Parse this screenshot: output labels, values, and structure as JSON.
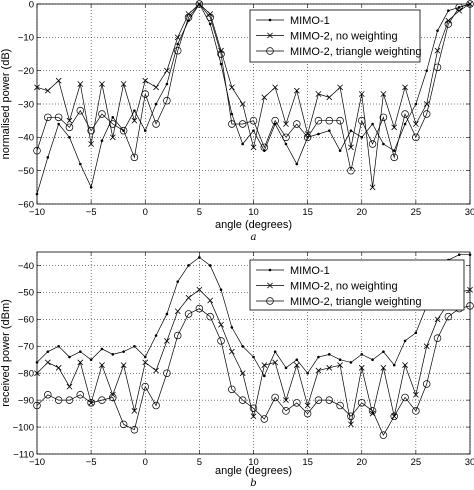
{
  "chart_data": [
    {
      "type": "line",
      "panel_label": "a",
      "xlabel": "angle (degrees)",
      "ylabel": "normalised power (dB)",
      "xlim": [
        -10,
        30
      ],
      "ylim": [
        -60,
        0
      ],
      "xticks": [
        -10,
        -5,
        0,
        5,
        10,
        15,
        20,
        25,
        30
      ],
      "yticks": [
        0,
        -10,
        -20,
        -30,
        -40,
        -50,
        -60
      ],
      "grid": true,
      "legend_position": "top-right",
      "series": [
        {
          "name": "MIMO-1",
          "marker": "dot",
          "x": [
            -10,
            -9,
            -8,
            -7,
            -6,
            -5,
            -4,
            -3,
            -2,
            -1,
            0,
            1,
            2,
            3,
            4,
            5,
            6,
            7,
            8,
            9,
            10,
            11,
            12,
            13,
            14,
            15,
            16,
            17,
            18,
            19,
            20,
            21,
            22,
            23,
            24,
            25,
            26,
            27,
            28,
            29,
            30
          ],
          "y": [
            -57,
            -46,
            -36,
            -40,
            -48,
            -55,
            -41,
            -34,
            -38,
            -32,
            -38,
            -30,
            -24,
            -12,
            -5,
            0,
            -6,
            -18,
            -33,
            -42,
            -38,
            -44,
            -36,
            -42,
            -48,
            -40,
            -39,
            -38,
            -44,
            -38,
            -40,
            -36,
            -42,
            -44,
            -36,
            -30,
            -20,
            -8,
            -2,
            -1,
            0
          ]
        },
        {
          "name": "MIMO-2, no weighting",
          "marker": "x",
          "x": [
            -10,
            -9,
            -8,
            -7,
            -6,
            -5,
            -4,
            -3,
            -2,
            -1,
            0,
            1,
            2,
            3,
            4,
            5,
            6,
            7,
            8,
            9,
            10,
            11,
            12,
            13,
            14,
            15,
            16,
            17,
            18,
            19,
            20,
            21,
            22,
            23,
            24,
            25,
            26,
            27,
            28,
            29,
            30
          ],
          "y": [
            -25,
            -26,
            -23,
            -35,
            -24,
            -42,
            -24,
            -40,
            -24,
            -35,
            -23,
            -25,
            -20,
            -10,
            -3,
            0,
            -3,
            -14,
            -25,
            -30,
            -43,
            -28,
            -25,
            -36,
            -26,
            -39,
            -27,
            -28,
            -25,
            -43,
            -27,
            -55,
            -27,
            -37,
            -25,
            -36,
            -30,
            -14,
            -5,
            -2,
            0
          ]
        },
        {
          "name": "MIMO-2, triangle weighting",
          "marker": "circle",
          "x": [
            -10,
            -9,
            -8,
            -7,
            -6,
            -5,
            -4,
            -3,
            -2,
            -1,
            0,
            1,
            2,
            3,
            4,
            5,
            6,
            7,
            8,
            9,
            10,
            11,
            12,
            13,
            14,
            15,
            16,
            17,
            18,
            19,
            20,
            21,
            22,
            23,
            24,
            25,
            26,
            27,
            28,
            29,
            30
          ],
          "y": [
            -44,
            -34,
            -34,
            -37,
            -32,
            -38,
            -33,
            -36,
            -38,
            -46,
            -27,
            -36,
            -29,
            -14,
            -4,
            0,
            -4,
            -15,
            -36,
            -36,
            -35,
            -43,
            -35,
            -40,
            -36,
            -40,
            -35,
            -35,
            -35,
            -50,
            -35,
            -42,
            -34,
            -46,
            -33,
            -40,
            -33,
            -19,
            -6,
            -1,
            0
          ]
        }
      ]
    },
    {
      "type": "line",
      "panel_label": "b",
      "xlabel": "angle (degrees)",
      "ylabel": "received power (dBm)",
      "xlim": [
        -10,
        30
      ],
      "ylim": [
        -110,
        -35
      ],
      "xticks": [
        -10,
        -5,
        0,
        5,
        10,
        15,
        20,
        25,
        30
      ],
      "yticks": [
        -40,
        -50,
        -60,
        -70,
        -80,
        -90,
        -100,
        -110
      ],
      "grid": true,
      "legend_position": "top-right",
      "series": [
        {
          "name": "MIMO-1",
          "marker": "dot",
          "x": [
            -10,
            -9,
            -8,
            -7,
            -6,
            -5,
            -4,
            -3,
            -2,
            -1,
            0,
            1,
            2,
            3,
            4,
            5,
            6,
            7,
            8,
            9,
            10,
            11,
            12,
            13,
            14,
            15,
            16,
            17,
            18,
            19,
            20,
            21,
            22,
            23,
            24,
            25,
            26,
            27,
            28,
            29,
            30
          ],
          "y": [
            -76,
            -72,
            -70,
            -74,
            -72,
            -75,
            -71,
            -73,
            -72,
            -70,
            -74,
            -66,
            -58,
            -46,
            -40,
            -37,
            -40,
            -49,
            -63,
            -70,
            -74,
            -81,
            -72,
            -78,
            -75,
            -80,
            -74,
            -73,
            -75,
            -76,
            -73,
            -75,
            -72,
            -77,
            -68,
            -65,
            -55,
            -44,
            -38,
            -36,
            -36
          ]
        },
        {
          "name": "MIMO-2, no weighting",
          "marker": "x",
          "x": [
            -10,
            -9,
            -8,
            -7,
            -6,
            -5,
            -4,
            -3,
            -2,
            -1,
            0,
            1,
            2,
            3,
            4,
            5,
            6,
            7,
            8,
            9,
            10,
            11,
            12,
            13,
            14,
            15,
            16,
            17,
            18,
            19,
            20,
            21,
            22,
            23,
            24,
            25,
            26,
            27,
            28,
            29,
            30
          ],
          "y": [
            -80,
            -76,
            -78,
            -85,
            -76,
            -91,
            -77,
            -88,
            -77,
            -94,
            -76,
            -79,
            -68,
            -57,
            -52,
            -49,
            -53,
            -62,
            -72,
            -80,
            -96,
            -77,
            -76,
            -90,
            -77,
            -92,
            -79,
            -78,
            -77,
            -99,
            -78,
            -95,
            -78,
            -96,
            -77,
            -88,
            -70,
            -60,
            -54,
            -50,
            -49
          ]
        },
        {
          "name": "MIMO-2, triangle weighting",
          "marker": "circle",
          "x": [
            -10,
            -9,
            -8,
            -7,
            -6,
            -5,
            -4,
            -3,
            -2,
            -1,
            0,
            1,
            2,
            3,
            4,
            5,
            6,
            7,
            8,
            9,
            10,
            11,
            12,
            13,
            14,
            15,
            16,
            17,
            18,
            19,
            20,
            21,
            22,
            23,
            24,
            25,
            26,
            27,
            28,
            29,
            30
          ],
          "y": [
            -92,
            -88,
            -90,
            -90,
            -88,
            -91,
            -90,
            -89,
            -99,
            -101,
            -85,
            -92,
            -80,
            -66,
            -58,
            -56,
            -59,
            -68,
            -86,
            -90,
            -93,
            -97,
            -89,
            -94,
            -91,
            -95,
            -90,
            -90,
            -92,
            -96,
            -91,
            -94,
            -103,
            -96,
            -89,
            -94,
            -84,
            -67,
            -59,
            -56,
            -55
          ]
        }
      ]
    }
  ]
}
